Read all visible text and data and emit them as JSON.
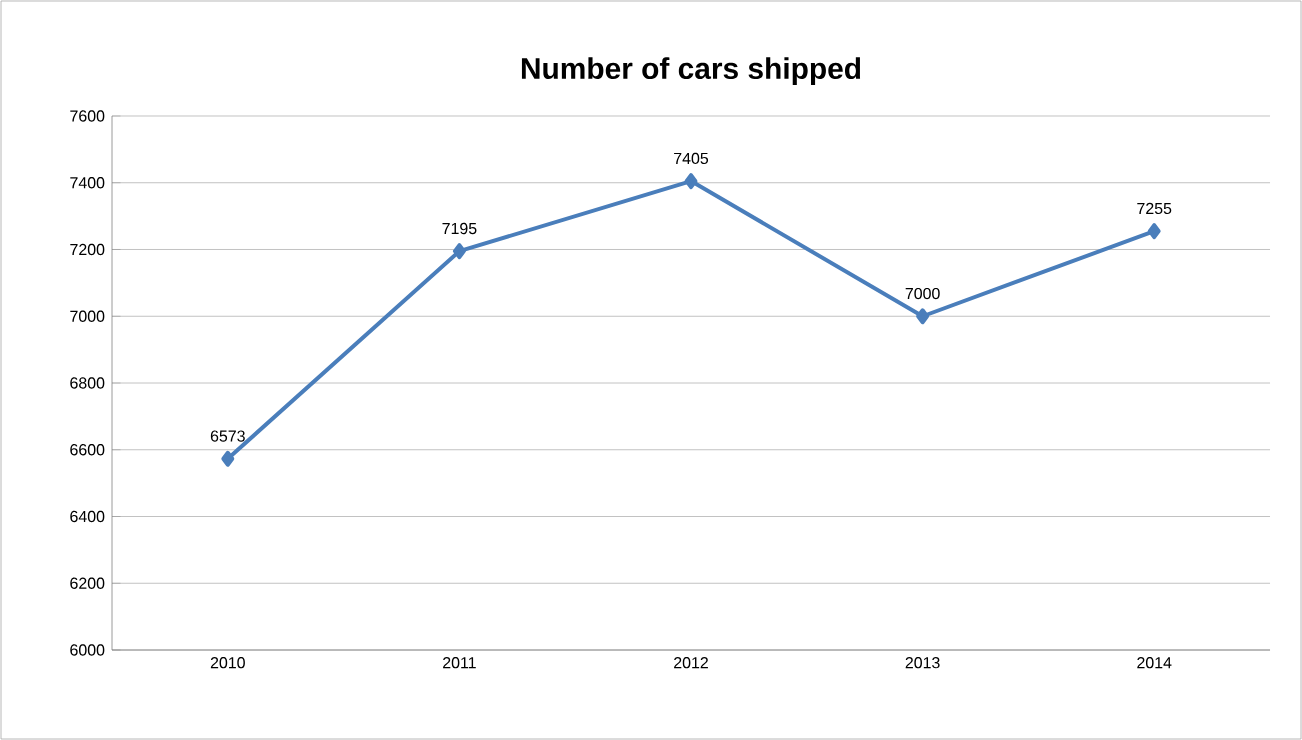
{
  "chart_data": {
    "type": "line",
    "title": "Number of cars shipped",
    "categories": [
      "2010",
      "2011",
      "2012",
      "2013",
      "2014"
    ],
    "series": [
      {
        "color": "#4a7ebb",
        "values": [
          6573,
          7195,
          7405,
          7000,
          7255
        ]
      }
    ],
    "ylim": [
      6000,
      7600
    ],
    "yticks": [
      6000,
      6200,
      6400,
      6600,
      6800,
      7000,
      7200,
      7400,
      7600
    ],
    "grid": "y",
    "marker": "diamond",
    "line_style": "solid",
    "data_labels": true,
    "legend": false
  }
}
